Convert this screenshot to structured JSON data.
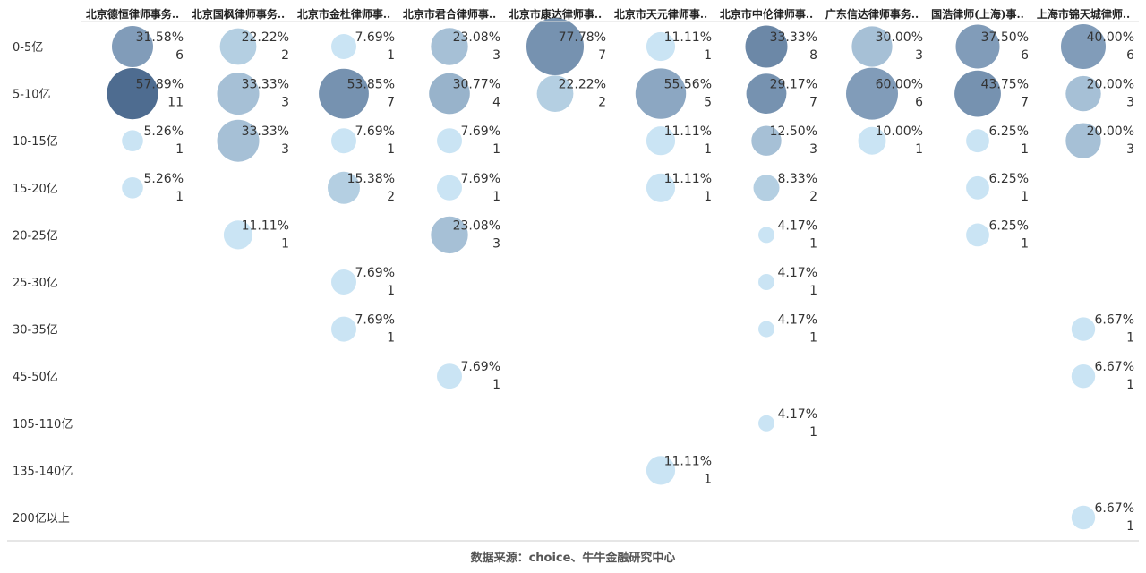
{
  "chart_data": {
    "type": "bubble-matrix",
    "columns": [
      "北京德恒律师事务..",
      "北京国枫律师事务..",
      "北京市金杜律师事..",
      "北京市君合律师事..",
      "北京市康达律师事..",
      "北京市天元律师事..",
      "北京市中伦律师事..",
      "广东信达律师事务..",
      "国浩律师(上海)事..",
      "上海市锦天城律师.."
    ],
    "rows": [
      "0-5亿",
      "5-10亿",
      "10-15亿",
      "15-20亿",
      "20-25亿",
      "25-30亿",
      "30-35亿",
      "45-50亿",
      "105-110亿",
      "135-140亿",
      "200亿以上"
    ],
    "cells": [
      {
        "row": "0-5亿",
        "col": "北京德恒律师事务..",
        "pct": "31.58%",
        "count": 6
      },
      {
        "row": "0-5亿",
        "col": "北京国枫律师事务..",
        "pct": "22.22%",
        "count": 2
      },
      {
        "row": "0-5亿",
        "col": "北京市金杜律师事..",
        "pct": "7.69%",
        "count": 1
      },
      {
        "row": "0-5亿",
        "col": "北京市君合律师事..",
        "pct": "23.08%",
        "count": 3
      },
      {
        "row": "0-5亿",
        "col": "北京市康达律师事..",
        "pct": "77.78%",
        "count": 7
      },
      {
        "row": "0-5亿",
        "col": "北京市天元律师事..",
        "pct": "11.11%",
        "count": 1
      },
      {
        "row": "0-5亿",
        "col": "北京市中伦律师事..",
        "pct": "33.33%",
        "count": 8
      },
      {
        "row": "0-5亿",
        "col": "广东信达律师事务..",
        "pct": "30.00%",
        "count": 3
      },
      {
        "row": "0-5亿",
        "col": "国浩律师(上海)事..",
        "pct": "37.50%",
        "count": 6
      },
      {
        "row": "0-5亿",
        "col": "上海市锦天城律师..",
        "pct": "40.00%",
        "count": 6
      },
      {
        "row": "5-10亿",
        "col": "北京德恒律师事务..",
        "pct": "57.89%",
        "count": 11
      },
      {
        "row": "5-10亿",
        "col": "北京国枫律师事务..",
        "pct": "33.33%",
        "count": 3
      },
      {
        "row": "5-10亿",
        "col": "北京市金杜律师事..",
        "pct": "53.85%",
        "count": 7
      },
      {
        "row": "5-10亿",
        "col": "北京市君合律师事..",
        "pct": "30.77%",
        "count": 4
      },
      {
        "row": "5-10亿",
        "col": "北京市康达律师事..",
        "pct": "22.22%",
        "count": 2
      },
      {
        "row": "5-10亿",
        "col": "北京市天元律师事..",
        "pct": "55.56%",
        "count": 5
      },
      {
        "row": "5-10亿",
        "col": "北京市中伦律师事..",
        "pct": "29.17%",
        "count": 7
      },
      {
        "row": "5-10亿",
        "col": "广东信达律师事务..",
        "pct": "60.00%",
        "count": 6
      },
      {
        "row": "5-10亿",
        "col": "国浩律师(上海)事..",
        "pct": "43.75%",
        "count": 7
      },
      {
        "row": "5-10亿",
        "col": "上海市锦天城律师..",
        "pct": "20.00%",
        "count": 3
      },
      {
        "row": "10-15亿",
        "col": "北京德恒律师事务..",
        "pct": "5.26%",
        "count": 1
      },
      {
        "row": "10-15亿",
        "col": "北京国枫律师事务..",
        "pct": "33.33%",
        "count": 3
      },
      {
        "row": "10-15亿",
        "col": "北京市金杜律师事..",
        "pct": "7.69%",
        "count": 1
      },
      {
        "row": "10-15亿",
        "col": "北京市君合律师事..",
        "pct": "7.69%",
        "count": 1
      },
      {
        "row": "10-15亿",
        "col": "北京市天元律师事..",
        "pct": "11.11%",
        "count": 1
      },
      {
        "row": "10-15亿",
        "col": "北京市中伦律师事..",
        "pct": "12.50%",
        "count": 3
      },
      {
        "row": "10-15亿",
        "col": "广东信达律师事务..",
        "pct": "10.00%",
        "count": 1
      },
      {
        "row": "10-15亿",
        "col": "国浩律师(上海)事..",
        "pct": "6.25%",
        "count": 1
      },
      {
        "row": "10-15亿",
        "col": "上海市锦天城律师..",
        "pct": "20.00%",
        "count": 3
      },
      {
        "row": "15-20亿",
        "col": "北京德恒律师事务..",
        "pct": "5.26%",
        "count": 1
      },
      {
        "row": "15-20亿",
        "col": "北京市金杜律师事..",
        "pct": "15.38%",
        "count": 2
      },
      {
        "row": "15-20亿",
        "col": "北京市君合律师事..",
        "pct": "7.69%",
        "count": 1
      },
      {
        "row": "15-20亿",
        "col": "北京市天元律师事..",
        "pct": "11.11%",
        "count": 1
      },
      {
        "row": "15-20亿",
        "col": "北京市中伦律师事..",
        "pct": "8.33%",
        "count": 2
      },
      {
        "row": "15-20亿",
        "col": "国浩律师(上海)事..",
        "pct": "6.25%",
        "count": 1
      },
      {
        "row": "20-25亿",
        "col": "北京国枫律师事务..",
        "pct": "11.11%",
        "count": 1
      },
      {
        "row": "20-25亿",
        "col": "北京市君合律师事..",
        "pct": "23.08%",
        "count": 3
      },
      {
        "row": "20-25亿",
        "col": "北京市中伦律师事..",
        "pct": "4.17%",
        "count": 1
      },
      {
        "row": "20-25亿",
        "col": "国浩律师(上海)事..",
        "pct": "6.25%",
        "count": 1
      },
      {
        "row": "25-30亿",
        "col": "北京市金杜律师事..",
        "pct": "7.69%",
        "count": 1
      },
      {
        "row": "25-30亿",
        "col": "北京市中伦律师事..",
        "pct": "4.17%",
        "count": 1
      },
      {
        "row": "30-35亿",
        "col": "北京市金杜律师事..",
        "pct": "7.69%",
        "count": 1
      },
      {
        "row": "30-35亿",
        "col": "北京市中伦律师事..",
        "pct": "4.17%",
        "count": 1
      },
      {
        "row": "30-35亿",
        "col": "上海市锦天城律师..",
        "pct": "6.67%",
        "count": 1
      },
      {
        "row": "45-50亿",
        "col": "北京市君合律师事..",
        "pct": "7.69%",
        "count": 1
      },
      {
        "row": "45-50亿",
        "col": "上海市锦天城律师..",
        "pct": "6.67%",
        "count": 1
      },
      {
        "row": "105-110亿",
        "col": "北京市中伦律师事..",
        "pct": "4.17%",
        "count": 1
      },
      {
        "row": "135-140亿",
        "col": "北京市天元律师事..",
        "pct": "11.11%",
        "count": 1
      },
      {
        "row": "200亿以上",
        "col": "上海市锦天城律师..",
        "pct": "6.67%",
        "count": 1
      }
    ],
    "color_scale": [
      "#c6e2f3",
      "#3f5f87"
    ]
  },
  "source_note": "数据来源：choice、牛牛金融研究中心"
}
